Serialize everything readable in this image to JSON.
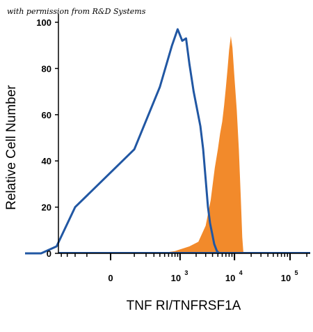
{
  "permission_note": "with permission from R&D Systems",
  "chart_data": {
    "type": "area",
    "xlabel": "TNF RI/TNFRSF1A",
    "ylabel": "Relative Cell Number",
    "ylim": [
      0,
      100
    ],
    "y_ticks": [
      "0",
      "20",
      "40",
      "60",
      "80",
      "100"
    ],
    "x_ticks": [
      {
        "label": "0",
        "exp": ""
      },
      {
        "label": "10",
        "exp": "3"
      },
      {
        "label": "10",
        "exp": "4"
      },
      {
        "label": "10",
        "exp": "5"
      }
    ],
    "x_scale": "biexponential",
    "series": [
      {
        "fill": true,
        "color": "#f28a2b",
        "points": [
          [
            130,
            0
          ],
          [
            400,
            0
          ],
          [
            800,
            1
          ],
          [
            1500,
            3
          ],
          [
            2200,
            5
          ],
          [
            3000,
            12
          ],
          [
            3700,
            23
          ],
          [
            4400,
            37
          ],
          [
            5000,
            45
          ],
          [
            5500,
            52
          ],
          [
            6000,
            57
          ],
          [
            6500,
            64
          ],
          [
            7000,
            72
          ],
          [
            7500,
            80
          ],
          [
            8000,
            88
          ],
          [
            8600,
            94
          ],
          [
            9200,
            89
          ],
          [
            10000,
            76
          ],
          [
            11000,
            62
          ],
          [
            12000,
            45
          ],
          [
            13000,
            24
          ],
          [
            13800,
            7
          ],
          [
            14500,
            0
          ]
        ]
      },
      {
        "fill": false,
        "color": "#2157a3",
        "points": [
          [
            -2000,
            0
          ],
          [
            -1000,
            0
          ],
          [
            -500,
            3
          ],
          [
            -200,
            20
          ],
          [
            100,
            45
          ],
          [
            400,
            72
          ],
          [
            700,
            90
          ],
          [
            900,
            97
          ],
          [
            1100,
            92
          ],
          [
            1300,
            93
          ],
          [
            1500,
            82
          ],
          [
            1800,
            70
          ],
          [
            2100,
            62
          ],
          [
            2400,
            55
          ],
          [
            2700,
            45
          ],
          [
            3000,
            32
          ],
          [
            3300,
            20
          ],
          [
            3600,
            13
          ],
          [
            3900,
            9
          ],
          [
            4300,
            4
          ],
          [
            4800,
            1
          ],
          [
            5300,
            0
          ]
        ]
      }
    ],
    "colors": {
      "filled": "#f28a2b",
      "outline": "#2157a3"
    }
  }
}
